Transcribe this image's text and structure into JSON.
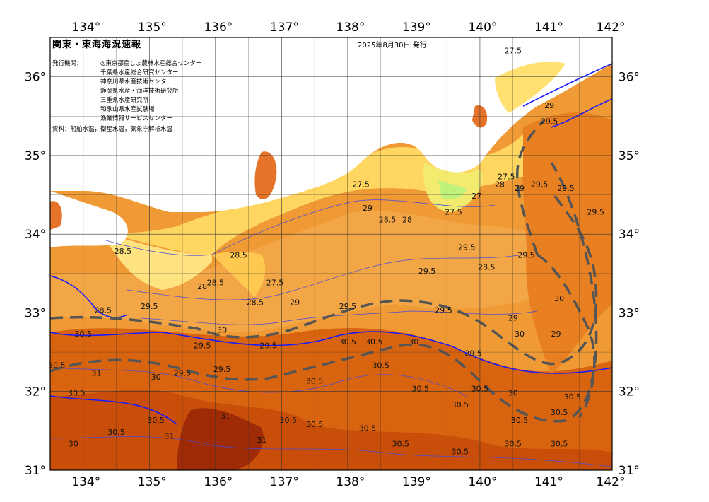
{
  "map": {
    "title": "関東・東海海況速報",
    "issue_date": "2025年8月30日 発行",
    "issuer_label": "発行機関：",
    "issuers": [
      "◎東京都島しょ農林水産総合センター",
      "千葉県水産総合研究センター",
      "神奈川県水産技術センター",
      "静岡県水産・海洋技術研究所",
      "三重県水産研究所",
      "和歌山県水産試験場",
      "漁業情報サービスセンター"
    ],
    "source_note": "資料：船舶水温，衛星水温，気象庁解析水温",
    "lon_labels": [
      "134°",
      "135°",
      "136°",
      "137°",
      "138°",
      "139°",
      "140°",
      "141°",
      "142°"
    ],
    "lat_labels": [
      "31°",
      "32°",
      "33°",
      "34°",
      "35°",
      "36°"
    ],
    "contour_labels": [
      {
        "text": "27.5",
        "lon": 138.2,
        "lat": 34.6
      },
      {
        "text": "29",
        "lon": 138.3,
        "lat": 34.3
      },
      {
        "text": "28.5",
        "lon": 138.6,
        "lat": 34.15
      },
      {
        "text": "28",
        "lon": 138.9,
        "lat": 34.15
      },
      {
        "text": "27.5",
        "lon": 139.6,
        "lat": 34.25
      },
      {
        "text": "27",
        "lon": 139.95,
        "lat": 34.45
      },
      {
        "text": "28.5",
        "lon": 134.6,
        "lat": 33.75
      },
      {
        "text": "28.5",
        "lon": 136.35,
        "lat": 33.7
      },
      {
        "text": "28.5",
        "lon": 136.0,
        "lat": 33.35
      },
      {
        "text": "28.5",
        "lon": 136.6,
        "lat": 33.1
      },
      {
        "text": "27.5",
        "lon": 136.9,
        "lat": 33.35
      },
      {
        "text": "28",
        "lon": 135.8,
        "lat": 33.3
      },
      {
        "text": "29",
        "lon": 137.2,
        "lat": 33.1
      },
      {
        "text": "29.5",
        "lon": 138.0,
        "lat": 33.05
      },
      {
        "text": "29.5",
        "lon": 139.45,
        "lat": 33.0
      },
      {
        "text": "29.5",
        "lon": 139.8,
        "lat": 33.8
      },
      {
        "text": "28.5",
        "lon": 140.1,
        "lat": 33.55
      },
      {
        "text": "29.5",
        "lon": 139.2,
        "lat": 33.5
      },
      {
        "text": "29.5",
        "lon": 140.7,
        "lat": 33.7
      },
      {
        "text": "29",
        "lon": 140.5,
        "lat": 32.9
      },
      {
        "text": "29.5",
        "lon": 135.0,
        "lat": 33.05
      },
      {
        "text": "28.5",
        "lon": 134.3,
        "lat": 33.0
      },
      {
        "text": "30",
        "lon": 136.1,
        "lat": 32.75
      },
      {
        "text": "29.5",
        "lon": 135.8,
        "lat": 32.55
      },
      {
        "text": "29.5",
        "lon": 136.8,
        "lat": 32.55
      },
      {
        "text": "29.5",
        "lon": 136.1,
        "lat": 32.25
      },
      {
        "text": "29.5",
        "lon": 135.5,
        "lat": 32.2
      },
      {
        "text": "30",
        "lon": 135.1,
        "lat": 32.15
      },
      {
        "text": "30.5",
        "lon": 134.0,
        "lat": 32.7
      },
      {
        "text": "30.5",
        "lon": 133.6,
        "lat": 32.3
      },
      {
        "text": "30.5",
        "lon": 133.9,
        "lat": 31.95
      },
      {
        "text": "30.5",
        "lon": 138.0,
        "lat": 32.6
      },
      {
        "text": "30.5",
        "lon": 138.4,
        "lat": 32.6
      },
      {
        "text": "30.5",
        "lon": 138.5,
        "lat": 32.3
      },
      {
        "text": "30.5",
        "lon": 137.5,
        "lat": 32.1
      },
      {
        "text": "30.5",
        "lon": 139.1,
        "lat": 32.0
      },
      {
        "text": "30.5",
        "lon": 139.7,
        "lat": 31.8
      },
      {
        "text": "30.5",
        "lon": 140.0,
        "lat": 32.0
      },
      {
        "text": "30.5",
        "lon": 140.6,
        "lat": 31.6
      },
      {
        "text": "30.5",
        "lon": 141.2,
        "lat": 31.7
      },
      {
        "text": "30.5",
        "lon": 141.2,
        "lat": 31.3
      },
      {
        "text": "30.5",
        "lon": 140.5,
        "lat": 31.3
      },
      {
        "text": "30.5",
        "lon": 139.7,
        "lat": 31.2
      },
      {
        "text": "30.5",
        "lon": 138.8,
        "lat": 31.3
      },
      {
        "text": "30.5",
        "lon": 138.3,
        "lat": 31.5
      },
      {
        "text": "30.5",
        "lon": 137.5,
        "lat": 31.55
      },
      {
        "text": "30.5",
        "lon": 137.1,
        "lat": 31.6
      },
      {
        "text": "30.5",
        "lon": 135.1,
        "lat": 31.6
      },
      {
        "text": "30.5",
        "lon": 134.5,
        "lat": 31.45
      },
      {
        "text": "30",
        "lon": 133.85,
        "lat": 31.3
      },
      {
        "text": "31",
        "lon": 136.15,
        "lat": 31.65
      },
      {
        "text": "31",
        "lon": 135.3,
        "lat": 31.4
      },
      {
        "text": "31",
        "lon": 136.7,
        "lat": 31.35
      },
      {
        "text": "31",
        "lon": 134.2,
        "lat": 32.2
      },
      {
        "text": "29",
        "lon": 141.05,
        "lat": 35.6
      },
      {
        "text": "29.5",
        "lon": 141.05,
        "lat": 35.4
      },
      {
        "text": "27.5",
        "lon": 140.5,
        "lat": 36.3
      },
      {
        "text": "27.5",
        "lon": 140.4,
        "lat": 34.7
      },
      {
        "text": "28",
        "lon": 140.3,
        "lat": 34.6
      },
      {
        "text": "29",
        "lon": 140.6,
        "lat": 34.55
      },
      {
        "text": "29.5",
        "lon": 140.9,
        "lat": 34.6
      },
      {
        "text": "29.5",
        "lon": 141.3,
        "lat": 34.55
      },
      {
        "text": "29.5",
        "lon": 141.75,
        "lat": 34.25
      },
      {
        "text": "30",
        "lon": 141.2,
        "lat": 33.15
      },
      {
        "text": "29",
        "lon": 141.15,
        "lat": 32.7
      },
      {
        "text": "29.5",
        "lon": 139.9,
        "lat": 32.45
      },
      {
        "text": "30",
        "lon": 139.0,
        "lat": 32.6
      },
      {
        "text": "30",
        "lon": 140.5,
        "lat": 31.95
      },
      {
        "text": "30.5",
        "lon": 141.4,
        "lat": 31.9
      },
      {
        "text": "30",
        "lon": 140.6,
        "lat": 32.7
      }
    ]
  }
}
